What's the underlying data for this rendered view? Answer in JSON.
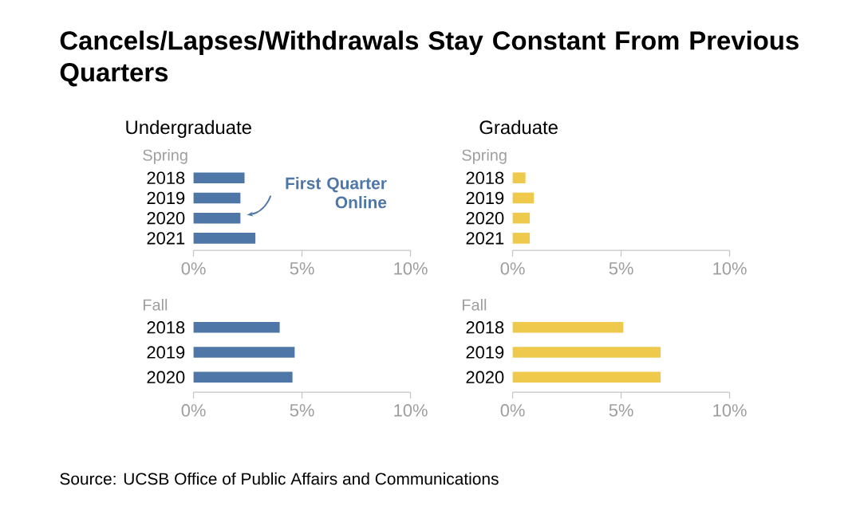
{
  "chart_data": [
    {
      "type": "bar",
      "orientation": "horizontal",
      "title": "Cancels/Lapses/Withdrawals Stay Constant From Previous Quarters",
      "subtitle": "Undergraduate",
      "ylabel": "Spring",
      "categories": [
        "2018",
        "2019",
        "2020",
        "2021"
      ],
      "values": [
        2.35,
        2.16,
        2.16,
        2.85
      ],
      "color": "#4e76a6",
      "xlim": [
        0,
        10
      ],
      "xticks": [
        {
          "value": 0,
          "label": "0%"
        },
        {
          "value": 5,
          "label": "5%"
        },
        {
          "value": 10,
          "label": "10%"
        }
      ],
      "annotations": [
        {
          "text": "First Quarter Online",
          "x": 2.16,
          "y": "2020"
        },
        "Source: UCSB Office of Public Affairs and Communications"
      ]
    },
    {
      "type": "bar",
      "orientation": "horizontal",
      "subtitle": "Graduate",
      "ylabel": "Spring",
      "categories": [
        "2018",
        "2019",
        "2020",
        "2021"
      ],
      "values": [
        0.59,
        0.98,
        0.79,
        0.79
      ],
      "color": "#efc94c",
      "xlim": [
        0,
        10
      ],
      "xticks": [
        {
          "value": 0,
          "label": "0%"
        },
        {
          "value": 5,
          "label": "5%"
        },
        {
          "value": 10,
          "label": "10%"
        }
      ]
    },
    {
      "type": "bar",
      "orientation": "horizontal",
      "ylabel": "Fall",
      "categories": [
        "2018",
        "2019",
        "2020"
      ],
      "values": [
        3.97,
        4.66,
        4.56
      ],
      "color": "#4e76a6",
      "xlim": [
        0,
        10
      ],
      "xticks": [
        {
          "value": 0,
          "label": "0%"
        },
        {
          "value": 5,
          "label": "5%"
        },
        {
          "value": 10,
          "label": "10%"
        }
      ]
    },
    {
      "type": "bar",
      "orientation": "horizontal",
      "ylabel": "Fall",
      "categories": [
        "2018",
        "2019",
        "2020"
      ],
      "values": [
        5.1,
        6.82,
        6.82
      ],
      "color": "#efc94c",
      "xlim": [
        0,
        10
      ],
      "xticks": [
        {
          "value": 0,
          "label": "0%"
        },
        {
          "value": 5,
          "label": "5%"
        },
        {
          "value": 10,
          "label": "10%"
        }
      ]
    }
  ]
}
